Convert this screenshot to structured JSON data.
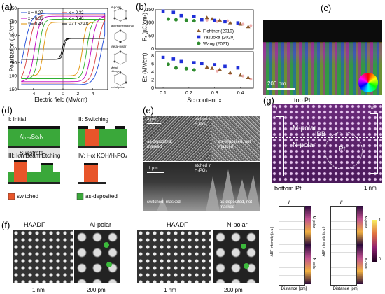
{
  "labels": {
    "a": "(a)",
    "b": "(b)",
    "c": "(c)",
    "d": "(d)",
    "e": "(e)",
    "f": "(f)",
    "g": "(g)"
  },
  "panel_a": {
    "ylabel": "Polarization (µC/cm²)",
    "xlabel": "Electric field (MV/cm)",
    "legend": [
      {
        "name": "x = 0.27",
        "color": "#1f4bd8"
      },
      {
        "name": "x = 0.36",
        "color": "#c000c0"
      },
      {
        "name": "x = 0.43",
        "color": "#e09000"
      },
      {
        "name": "x = 0.32",
        "color": "#d84040"
      },
      {
        "name": "x = 0.40",
        "color": "#30b030"
      },
      {
        "name": "PZT 52/48",
        "color": "#000000"
      }
    ],
    "struct_labels": [
      "N-polar",
      "layered hexagonal",
      "Metal-polar",
      "Metal",
      "Nitrogen",
      "metal-polar"
    ]
  },
  "chart_data": [
    {
      "type": "scatter",
      "panel": "a",
      "xlabel": "Electric field (MV/cm)",
      "ylabel": "Polarization (µC/cm²)",
      "xlim": [
        -6,
        6
      ],
      "ylim": [
        -150,
        150
      ],
      "xticks": [
        -4,
        -2,
        0,
        2,
        4
      ],
      "yticks": [
        -150,
        -100,
        -50,
        0,
        50,
        100,
        150
      ],
      "loops": [
        {
          "name": "x = 0.27",
          "color": "#1f4bd8",
          "ec": 5.2,
          "pr": 120
        },
        {
          "name": "x = 0.32",
          "color": "#d84040",
          "ec": 4.6,
          "pr": 115
        },
        {
          "name": "x = 0.36",
          "color": "#c000c0",
          "ec": 3.8,
          "pr": 110
        },
        {
          "name": "x = 0.40",
          "color": "#30b030",
          "ec": 3.2,
          "pr": 100
        },
        {
          "name": "x = 0.43",
          "color": "#e09000",
          "ec": 2.6,
          "pr": 90
        },
        {
          "name": "PZT 52/48",
          "color": "#000000",
          "ec": 0.1,
          "pr": 35
        }
      ]
    },
    {
      "type": "scatter",
      "panel": "b",
      "xlabel": "Sc content x",
      "ylabel_top": "Pᵣ (µC/cm²)",
      "ylabel_bottom": "Eᴄ (MV/cm)",
      "xlim": [
        0.07,
        0.45
      ],
      "xticks": [
        0.1,
        0.2,
        0.3,
        0.4
      ],
      "ylim_top": [
        0,
        150
      ],
      "yticks_top": [
        0,
        50,
        100,
        150
      ],
      "ylim_bottom": [
        0,
        9
      ],
      "yticks_bottom": [
        0,
        2,
        4,
        6,
        8
      ],
      "series": [
        {
          "name": "Fichtner (2019)",
          "color": "#8b5a2b",
          "marker": "triangle",
          "pr": [
            [
              0.27,
              120
            ],
            [
              0.29,
              115
            ],
            [
              0.32,
              110
            ],
            [
              0.36,
              100
            ],
            [
              0.4,
              95
            ],
            [
              0.43,
              85
            ]
          ],
          "ec": [
            [
              0.27,
              5.2
            ],
            [
              0.29,
              4.9
            ],
            [
              0.32,
              4.6
            ],
            [
              0.36,
              3.8
            ],
            [
              0.4,
              3.2
            ],
            [
              0.43,
              2.6
            ]
          ]
        },
        {
          "name": "Yasuoka (2020)",
          "color": "#1f2fd8",
          "marker": "square",
          "pr": [
            [
              0.1,
              145
            ],
            [
              0.14,
              140
            ],
            [
              0.17,
              128
            ],
            [
              0.22,
              125
            ],
            [
              0.25,
              112
            ],
            [
              0.3,
              110
            ],
            [
              0.34,
              105
            ],
            [
              0.39,
              100
            ]
          ],
          "ec": [
            [
              0.1,
              7.6
            ],
            [
              0.14,
              7.2
            ],
            [
              0.17,
              6.6
            ],
            [
              0.22,
              6.3
            ],
            [
              0.25,
              6.1
            ],
            [
              0.3,
              5.8
            ],
            [
              0.34,
              5.4
            ],
            [
              0.39,
              5.0
            ]
          ]
        },
        {
          "name": "Wang (2021)",
          "color": "#2e8b2e",
          "marker": "circle",
          "pr": [
            [
              0.12,
              115
            ],
            [
              0.15,
              112
            ],
            [
              0.19,
              110
            ],
            [
              0.22,
              108
            ]
          ],
          "ec": [
            [
              0.12,
              5.9
            ],
            [
              0.15,
              5.0
            ],
            [
              0.19,
              4.8
            ],
            [
              0.22,
              4.5
            ]
          ]
        }
      ],
      "faded": {
        "pr": [
          [
            0.27,
            110
          ],
          [
            0.31,
            105
          ],
          [
            0.35,
            108
          ],
          [
            0.41,
            95
          ],
          [
            0.44,
            90
          ]
        ],
        "ec": [
          [
            0.27,
            5.0
          ],
          [
            0.31,
            4.2
          ],
          [
            0.36,
            3.6
          ],
          [
            0.41,
            3.0
          ],
          [
            0.44,
            2.2
          ]
        ]
      }
    }
  ],
  "panel_c": {
    "scalebar": "200 nm"
  },
  "panel_d": {
    "steps": [
      "I: Initial",
      "II: Switching",
      "III: Ion Beam Etching",
      "IV: Hot KOH/H₃PO₄"
    ],
    "film": "Al₁₋ₓScₓN",
    "substrate": "Substrate",
    "legend": [
      {
        "name": "switched",
        "color": "#e8552a"
      },
      {
        "name": "as-deposited",
        "color": "#3aa83a"
      }
    ]
  },
  "panel_e": {
    "top_captions": [
      "etched in H₃PO₄",
      "as-deposited, masked",
      "as-deposited, not masked"
    ],
    "bottom_captions": [
      "etched in H₃PO₄",
      "switched, masked",
      "as-deposited, not masked"
    ],
    "scale_top": "4 µm",
    "scale_bottom": "1 µm"
  },
  "panel_f": {
    "titles": [
      "HAADF",
      "Al-polar",
      "HAADF",
      "N-polar"
    ],
    "scales": [
      "1 nm",
      "200 pm",
      "1 nm",
      "200 pm"
    ]
  },
  "panel_g": {
    "top": "top Pt",
    "bottom": "bottom Pt",
    "m_polar": "M-polar",
    "n_polar": "N-polar",
    "idb": "IDB",
    "pt": "Pt",
    "marker_i": "i",
    "marker_ii": "ii",
    "scalebar": "1 nm",
    "sub": [
      {
        "label": "i",
        "ylabel": "ABF Intensity (a.u.)",
        "xlabel": "Distance [pm]",
        "pol_top": "M-polar",
        "pol_bottom": "N-polar"
      },
      {
        "label": "ii",
        "ylabel": "ABF Intensity (a.u.)",
        "xlabel": "Distance [pm]",
        "pol_top": "M-polar",
        "pol_bottom": "N-polar"
      }
    ],
    "colorbar": [
      "1",
      "0"
    ]
  }
}
